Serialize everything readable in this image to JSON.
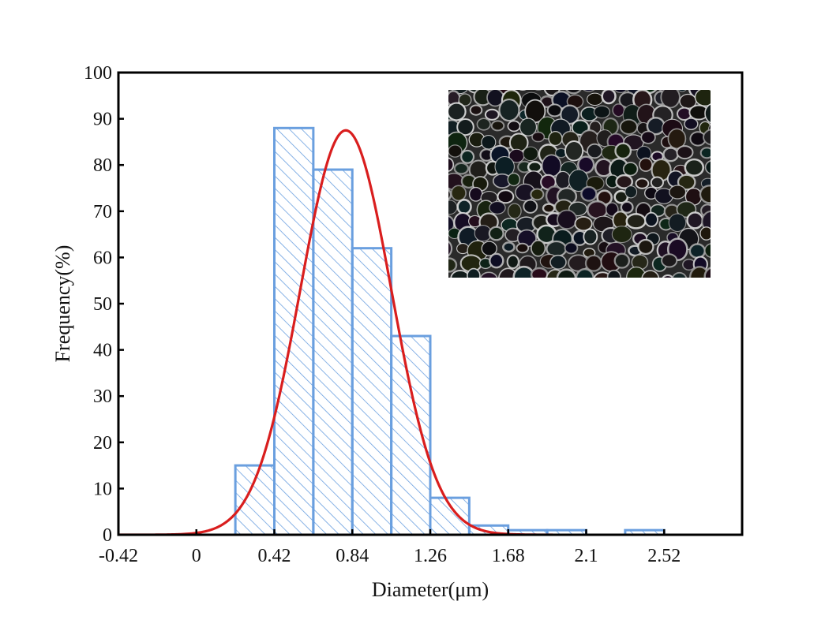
{
  "chart_data": {
    "type": "bar",
    "title": "",
    "xlabel": "Diameter(μm)",
    "ylabel": "Frequency(%)",
    "xlim": [
      -0.42,
      2.94
    ],
    "ylim": [
      0,
      100
    ],
    "x_ticks": [
      -0.42,
      0,
      0.42,
      0.84,
      1.26,
      1.68,
      2.1,
      2.52
    ],
    "x_tick_labels": [
      "-0.42",
      "0",
      "0.42",
      "0.84",
      "1.26",
      "1.68",
      "2.1",
      "2.52"
    ],
    "y_ticks": [
      0,
      10,
      20,
      30,
      40,
      50,
      60,
      70,
      80,
      90,
      100
    ],
    "y_tick_labels": [
      "0",
      "10",
      "20",
      "30",
      "40",
      "50",
      "60",
      "70",
      "80",
      "90",
      "100"
    ],
    "bin_width": 0.21,
    "bins": [
      {
        "x0": 0.21,
        "x1": 0.42,
        "value": 15
      },
      {
        "x0": 0.42,
        "x1": 0.63,
        "value": 88
      },
      {
        "x0": 0.63,
        "x1": 0.84,
        "value": 79
      },
      {
        "x0": 0.84,
        "x1": 1.05,
        "value": 62
      },
      {
        "x0": 1.05,
        "x1": 1.26,
        "value": 43
      },
      {
        "x0": 1.26,
        "x1": 1.47,
        "value": 8
      },
      {
        "x0": 1.47,
        "x1": 1.68,
        "value": 2
      },
      {
        "x0": 1.68,
        "x1": 1.89,
        "value": 1
      },
      {
        "x0": 1.89,
        "x1": 2.1,
        "value": 1
      },
      {
        "x0": 2.31,
        "x1": 2.52,
        "value": 1
      }
    ],
    "fit_curve": {
      "type": "gaussian",
      "mean": 0.805,
      "sigma": 0.245,
      "peak": 87.5,
      "x_range": [
        -0.42,
        1.92
      ]
    },
    "inset": {
      "type": "micrograph",
      "description": "SEM image of porous cellular structure"
    },
    "grid": false,
    "legend": "none"
  },
  "colors": {
    "bar_edge": "#6a9fdf",
    "bar_hatch": "#6a9fdf",
    "fit_line": "#d91e1e",
    "axis": "#000000",
    "inset_background": "#2a2a2a",
    "inset_cell_edge": "#c8c8c8"
  }
}
